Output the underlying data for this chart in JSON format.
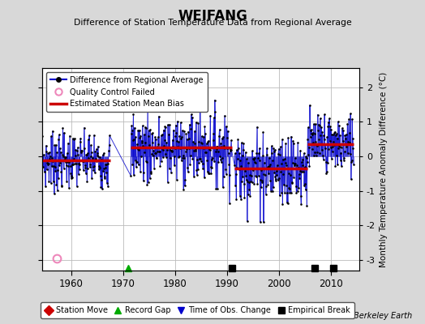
{
  "title": "WEIFANG",
  "subtitle": "Difference of Station Temperature Data from Regional Average",
  "ylabel": "Monthly Temperature Anomaly Difference (°C)",
  "xlabel_years": [
    1960,
    1970,
    1980,
    1990,
    2000,
    2010
  ],
  "xlim": [
    1954.5,
    2015.5
  ],
  "ylim": [
    -3.3,
    2.55
  ],
  "yticks": [
    -3,
    -2,
    -1,
    0,
    1,
    2
  ],
  "background_color": "#d8d8d8",
  "plot_bg_color": "#ffffff",
  "line_color": "#0000cc",
  "dot_color": "#000000",
  "bias_color": "#cc0000",
  "grid_color": "#bbbbbb",
  "segments": [
    {
      "start": 1954.5,
      "end": 1967.5,
      "bias": -0.12,
      "mean": -0.12,
      "std": 0.42
    },
    {
      "start": 1971.5,
      "end": 1991.0,
      "bias": 0.25,
      "mean": 0.25,
      "std": 0.52
    },
    {
      "start": 1991.5,
      "end": 2005.5,
      "bias": -0.35,
      "mean": -0.35,
      "std": 0.55
    },
    {
      "start": 2005.5,
      "end": 2014.5,
      "bias": 0.35,
      "mean": 0.35,
      "std": 0.45
    }
  ],
  "record_gaps": [
    1971.0
  ],
  "empirical_breaks": [
    1991.0,
    2007.0,
    2010.5
  ],
  "qc_fail_x": [
    1957.3
  ],
  "qc_fail_y": [
    -2.95
  ],
  "watermark": "Berkeley Earth"
}
